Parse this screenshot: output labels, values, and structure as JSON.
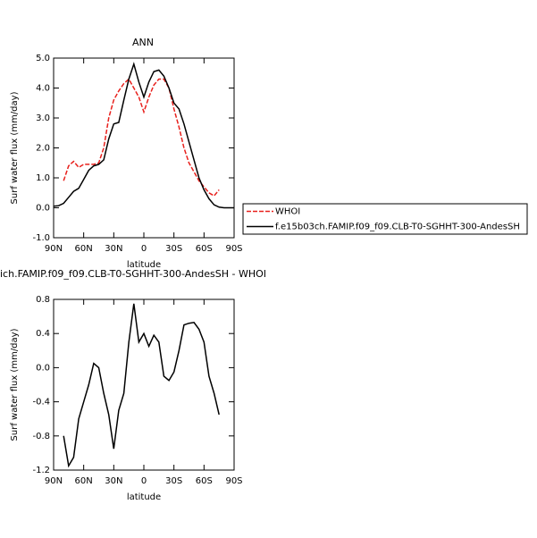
{
  "chart_data": [
    {
      "type": "line",
      "title": "ANN",
      "xlabel": "latitude",
      "ylabel": "Surf water flux (mm/day)",
      "x": [
        90,
        85,
        80,
        75,
        70,
        65,
        60,
        55,
        50,
        45,
        40,
        35,
        30,
        25,
        20,
        15,
        10,
        5,
        0,
        -5,
        -10,
        -15,
        -20,
        -25,
        -30,
        -35,
        -40,
        -45,
        -50,
        -55,
        -60,
        -65,
        -70,
        -75,
        -80,
        -85,
        -90
      ],
      "xlim": [
        90,
        -90
      ],
      "xticks": [
        {
          "value": 90,
          "label": "90N"
        },
        {
          "value": 60,
          "label": "60N"
        },
        {
          "value": 30,
          "label": "30N"
        },
        0,
        {
          "value": -30,
          "label": "30S"
        },
        {
          "value": -60,
          "label": "60S"
        },
        {
          "value": -90,
          "label": "90S"
        }
      ],
      "ylim": [
        -1,
        5
      ],
      "yticks": [
        {
          "value": -1,
          "label": "-1.0"
        },
        {
          "value": 0,
          "label": "0.0"
        },
        {
          "value": 1,
          "label": "1.0"
        },
        {
          "value": 2,
          "label": "2.0"
        },
        {
          "value": 3,
          "label": "3.0"
        },
        {
          "value": 4,
          "label": "4.0"
        },
        {
          "value": 5,
          "label": "5.0"
        }
      ],
      "series": [
        {
          "name": "WHOI",
          "color": "#e8201c",
          "dash": true,
          "values": [
            null,
            null,
            0.9,
            1.4,
            1.55,
            1.35,
            1.45,
            1.45,
            1.45,
            1.5,
            2.0,
            3.0,
            3.6,
            3.9,
            4.15,
            4.3,
            4.0,
            3.7,
            3.2,
            3.7,
            4.1,
            4.3,
            4.3,
            4.0,
            3.3,
            2.7,
            2.0,
            1.5,
            1.2,
            0.9,
            0.7,
            0.5,
            0.4,
            0.6,
            null,
            null,
            null
          ]
        },
        {
          "name": "f.e15b03ch.FAMIP.f09_f09.CLB-T0-SGHHT-300-AndesSH",
          "color": "#000000",
          "dash": false,
          "values": [
            0.05,
            0.07,
            0.15,
            0.35,
            0.55,
            0.65,
            0.95,
            1.25,
            1.4,
            1.45,
            1.6,
            2.3,
            2.8,
            2.85,
            3.6,
            4.3,
            4.8,
            4.2,
            3.7,
            4.2,
            4.55,
            4.6,
            4.4,
            4.0,
            3.5,
            3.3,
            2.8,
            2.2,
            1.6,
            1.0,
            0.6,
            0.3,
            0.1,
            0.02,
            0.0,
            0.0,
            0.0
          ]
        }
      ]
    },
    {
      "type": "line",
      "title": "ich.FAMIP.f09_f09.CLB-T0-SGHHT-300-AndesSH - WHOI",
      "xlabel": "latitude",
      "ylabel": "Surf water flux (mm/day)",
      "x": [
        80,
        75,
        70,
        65,
        60,
        55,
        50,
        45,
        40,
        35,
        30,
        25,
        20,
        15,
        10,
        5,
        0,
        -5,
        -10,
        -15,
        -20,
        -25,
        -30,
        -35,
        -40,
        -45,
        -50,
        -55,
        -60,
        -65,
        -70,
        -75
      ],
      "xlim": [
        90,
        -90
      ],
      "xticks": [
        {
          "value": 90,
          "label": "90N"
        },
        {
          "value": 60,
          "label": "60N"
        },
        {
          "value": 30,
          "label": "30N"
        },
        0,
        {
          "value": -30,
          "label": "30S"
        },
        {
          "value": -60,
          "label": "60S"
        },
        {
          "value": -90,
          "label": "90S"
        }
      ],
      "ylim": [
        -1.2,
        0.8
      ],
      "yticks": [
        -1.2,
        -0.8,
        -0.4,
        {
          "value": 0,
          "label": "0.0"
        },
        0.4,
        0.8
      ],
      "series": [
        {
          "color": "#000000",
          "dash": false,
          "values": [
            -0.8,
            -1.15,
            -1.05,
            -0.6,
            -0.4,
            -0.2,
            0.05,
            0.0,
            -0.3,
            -0.55,
            -0.95,
            -0.5,
            -0.3,
            0.3,
            0.75,
            0.3,
            0.4,
            0.25,
            0.38,
            0.3,
            -0.1,
            -0.15,
            -0.05,
            0.2,
            0.5,
            0.52,
            0.53,
            0.45,
            0.3,
            -0.1,
            -0.3,
            -0.55
          ]
        }
      ]
    }
  ]
}
